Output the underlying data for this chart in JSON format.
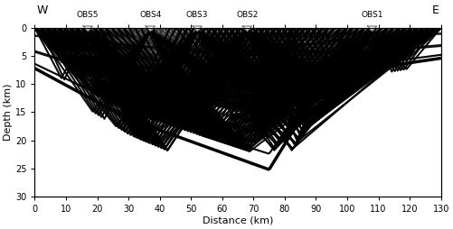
{
  "obs_positions": [
    17.0,
    37.0,
    52.0,
    68.0,
    108.0
  ],
  "obs_labels": [
    "OBS5",
    "OBS4",
    "OBS3",
    "OBS2",
    "OBS1"
  ],
  "obs_depths": [
    0.5,
    0.5,
    0.5,
    0.5,
    0.5
  ],
  "xlim": [
    0,
    130
  ],
  "ylim_min": 0,
  "ylim_max": 30,
  "xlabel": "Distance (km)",
  "ylabel": "Depth (km)",
  "xticks": [
    0,
    10,
    20,
    30,
    40,
    50,
    60,
    70,
    80,
    90,
    100,
    110,
    120,
    130
  ],
  "yticks": [
    0,
    5,
    10,
    15,
    20,
    25,
    30
  ],
  "west_label": "W",
  "east_label": "E",
  "fig_width": 5.01,
  "fig_height": 2.54,
  "dpi": 100,
  "thin_line_color": "#888888",
  "bold_line_color": "#000000",
  "background_color": "#ffffff",
  "n_receivers": 70,
  "layers_per_obs": [
    [
      0.5,
      1.5,
      3.0,
      4.5,
      6.0,
      8.0,
      10.0,
      11.5,
      16.5,
      21.0
    ],
    [
      0.5,
      1.5,
      3.0,
      4.5,
      6.0,
      8.0,
      10.0,
      11.5,
      16.5,
      21.0
    ],
    [
      0.5,
      1.5,
      3.0,
      4.5,
      6.0,
      8.0,
      10.0,
      11.5,
      16.5,
      21.0
    ],
    [
      0.5,
      1.5,
      3.0,
      4.5,
      6.0,
      8.0,
      10.0,
      11.5,
      16.5,
      21.0
    ],
    [
      0.5,
      1.5,
      3.0,
      4.5,
      6.0,
      8.0,
      10.0,
      11.5,
      16.5,
      21.0
    ]
  ]
}
